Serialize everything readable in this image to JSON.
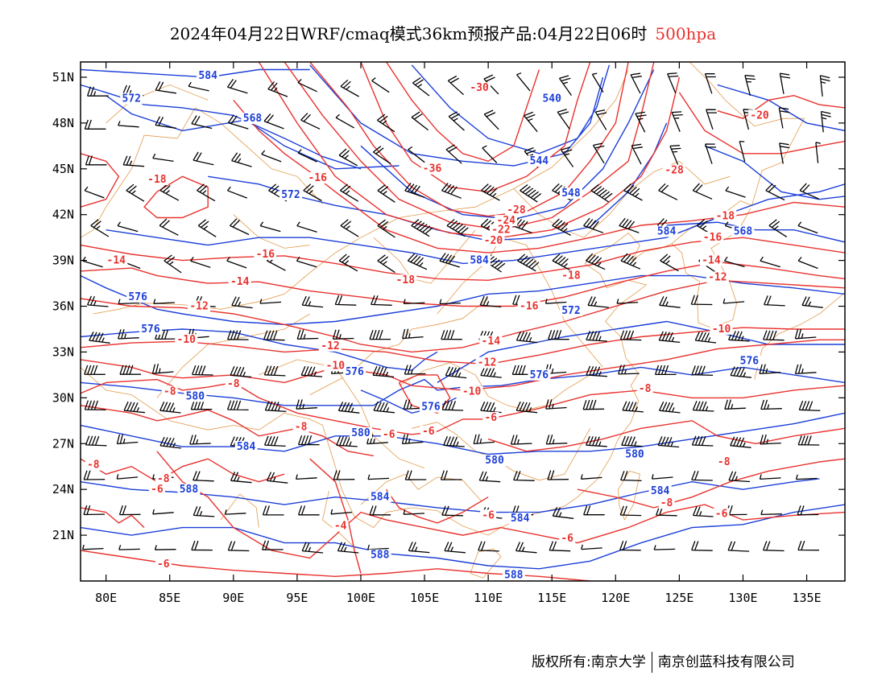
{
  "title": {
    "main": "2024年04月22日WRF/cmaq模式36km预报产品:04月22日06时",
    "level": "500hpa"
  },
  "footer": {
    "copyright": "版权所有:南京大学",
    "company": "南京创蓝科技有限公司"
  },
  "colors": {
    "height_contour": "#1c3fd8",
    "temperature_contour": "#e8322e",
    "boundary": "#e29a4a",
    "wind_barb": "#000000"
  },
  "map": {
    "lon_range": [
      78,
      138
    ],
    "lat_range": [
      18,
      52
    ],
    "lon_ticks": [
      "80E",
      "85E",
      "90E",
      "95E",
      "100E",
      "105E",
      "110E",
      "115E",
      "120E",
      "125E",
      "130E",
      "135E"
    ],
    "lat_ticks": [
      "51N",
      "48N",
      "45N",
      "42N",
      "39N",
      "36N",
      "33N",
      "30N",
      "27N",
      "24N",
      "21N"
    ],
    "height_labels": [
      {
        "text": "584",
        "lon": 88.0,
        "lat": 51.0
      },
      {
        "text": "572",
        "lon": 82.0,
        "lat": 49.5
      },
      {
        "text": "568",
        "lon": 91.5,
        "lat": 48.2
      },
      {
        "text": "540",
        "lon": 115.0,
        "lat": 49.5
      },
      {
        "text": "544",
        "lon": 114.0,
        "lat": 45.4
      },
      {
        "text": "548",
        "lon": 116.5,
        "lat": 43.3
      },
      {
        "text": "572",
        "lon": 94.5,
        "lat": 43.2
      },
      {
        "text": "584",
        "lon": 124.0,
        "lat": 40.8
      },
      {
        "text": "568",
        "lon": 130.0,
        "lat": 40.8
      },
      {
        "text": "584",
        "lon": 109.3,
        "lat": 38.9
      },
      {
        "text": "576",
        "lon": 82.5,
        "lat": 36.5
      },
      {
        "text": "576",
        "lon": 83.5,
        "lat": 34.4
      },
      {
        "text": "572",
        "lon": 116.5,
        "lat": 35.6
      },
      {
        "text": "576",
        "lon": 99.5,
        "lat": 31.6
      },
      {
        "text": "576",
        "lon": 114.0,
        "lat": 31.4
      },
      {
        "text": "576",
        "lon": 130.5,
        "lat": 32.3
      },
      {
        "text": "580",
        "lon": 87.0,
        "lat": 30.0
      },
      {
        "text": "576",
        "lon": 105.5,
        "lat": 29.3
      },
      {
        "text": "580",
        "lon": 100.0,
        "lat": 27.6
      },
      {
        "text": "584",
        "lon": 91.0,
        "lat": 26.7
      },
      {
        "text": "580",
        "lon": 110.5,
        "lat": 25.8
      },
      {
        "text": "580",
        "lon": 121.5,
        "lat": 26.2
      },
      {
        "text": "588",
        "lon": 86.5,
        "lat": 23.9
      },
      {
        "text": "584",
        "lon": 101.5,
        "lat": 23.4
      },
      {
        "text": "584",
        "lon": 112.5,
        "lat": 22.0
      },
      {
        "text": "584",
        "lon": 123.5,
        "lat": 23.8
      },
      {
        "text": "588",
        "lon": 101.5,
        "lat": 19.6
      },
      {
        "text": "588",
        "lon": 112.0,
        "lat": 18.3
      }
    ],
    "temperature_labels": [
      {
        "text": "-30",
        "lon": 109.3,
        "lat": 50.2
      },
      {
        "text": "-36",
        "lon": 105.6,
        "lat": 44.9
      },
      {
        "text": "-28",
        "lon": 124.6,
        "lat": 44.8
      },
      {
        "text": "-20",
        "lon": 131.3,
        "lat": 48.4
      },
      {
        "text": "-18",
        "lon": 84.0,
        "lat": 44.2
      },
      {
        "text": "-16",
        "lon": 96.6,
        "lat": 44.3
      },
      {
        "text": "-28",
        "lon": 112.2,
        "lat": 42.2
      },
      {
        "text": "-24",
        "lon": 111.4,
        "lat": 41.5
      },
      {
        "text": "-22",
        "lon": 111.0,
        "lat": 40.9
      },
      {
        "text": "-20",
        "lon": 110.4,
        "lat": 40.2
      },
      {
        "text": "-18",
        "lon": 128.6,
        "lat": 41.8
      },
      {
        "text": "-16",
        "lon": 127.6,
        "lat": 40.4
      },
      {
        "text": "-14",
        "lon": 127.5,
        "lat": 38.9
      },
      {
        "text": "-12",
        "lon": 128.0,
        "lat": 37.8
      },
      {
        "text": "-14",
        "lon": 80.8,
        "lat": 38.9
      },
      {
        "text": "-16",
        "lon": 92.5,
        "lat": 39.3
      },
      {
        "text": "-18",
        "lon": 103.5,
        "lat": 37.6
      },
      {
        "text": "-18",
        "lon": 116.5,
        "lat": 37.9
      },
      {
        "text": "-14",
        "lon": 90.5,
        "lat": 37.5
      },
      {
        "text": "-12",
        "lon": 87.3,
        "lat": 35.9
      },
      {
        "text": "-16",
        "lon": 113.2,
        "lat": 35.9
      },
      {
        "text": "-10",
        "lon": 86.3,
        "lat": 33.7
      },
      {
        "text": "-12",
        "lon": 97.6,
        "lat": 33.3
      },
      {
        "text": "-14",
        "lon": 110.2,
        "lat": 33.6
      },
      {
        "text": "-10",
        "lon": 128.3,
        "lat": 34.4
      },
      {
        "text": "-10",
        "lon": 98.0,
        "lat": 32.0
      },
      {
        "text": "-12",
        "lon": 109.9,
        "lat": 32.2
      },
      {
        "text": "-10",
        "lon": 108.7,
        "lat": 30.3
      },
      {
        "text": "-8",
        "lon": 90.0,
        "lat": 30.8
      },
      {
        "text": "-8",
        "lon": 85.0,
        "lat": 30.3
      },
      {
        "text": "-8",
        "lon": 95.3,
        "lat": 28.0
      },
      {
        "text": "-6",
        "lon": 102.2,
        "lat": 27.5
      },
      {
        "text": "-6",
        "lon": 105.3,
        "lat": 27.7
      },
      {
        "text": "-6",
        "lon": 110.2,
        "lat": 28.6
      },
      {
        "text": "-8",
        "lon": 122.3,
        "lat": 30.5
      },
      {
        "text": "-8",
        "lon": 79.0,
        "lat": 25.5
      },
      {
        "text": "-8",
        "lon": 84.5,
        "lat": 24.6
      },
      {
        "text": "-6",
        "lon": 84.0,
        "lat": 23.9
      },
      {
        "text": "-8",
        "lon": 128.5,
        "lat": 25.7
      },
      {
        "text": "-8",
        "lon": 124.0,
        "lat": 23.0
      },
      {
        "text": "-6",
        "lon": 128.3,
        "lat": 22.3
      },
      {
        "text": "-4",
        "lon": 98.4,
        "lat": 21.5
      },
      {
        "text": "-6",
        "lon": 110.0,
        "lat": 22.2
      },
      {
        "text": "-6",
        "lon": 116.2,
        "lat": 20.7
      },
      {
        "text": "-6",
        "lon": 84.5,
        "lat": 19.0
      }
    ]
  }
}
